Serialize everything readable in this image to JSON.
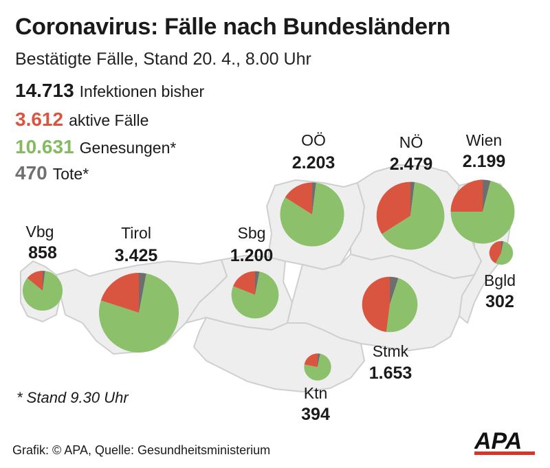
{
  "title": "Coronavirus: Fälle nach Bundesländern",
  "subtitle": "Bestätigte Fälle, Stand 20. 4., 8.00 Uhr",
  "totals": [
    {
      "value": "14.713",
      "label": "Infektionen bisher",
      "color": "#1a1a1a"
    },
    {
      "value": "3.612",
      "label": "aktive Fälle",
      "color": "#d9553f"
    },
    {
      "value": "10.631",
      "label": "Genesungen*",
      "color": "#83bb5e"
    },
    {
      "value": "470",
      "label": "Tote*",
      "color": "#707070"
    }
  ],
  "colors": {
    "active": "#d9553f",
    "recovered": "#8cc06a",
    "deaths": "#6e6e6e",
    "map_fill": "#eeeeee",
    "map_border": "#cfcfcf"
  },
  "regions": [
    {
      "name": "Vbg",
      "total": "858",
      "total_num": 858,
      "active_share": 0.14,
      "death_share": 0.02
    },
    {
      "name": "Tirol",
      "total": "3.425",
      "total_num": 3425,
      "active_share": 0.2,
      "death_share": 0.03
    },
    {
      "name": "Sbg",
      "total": "1.200",
      "total_num": 1200,
      "active_share": 0.19,
      "death_share": 0.03
    },
    {
      "name": "OÖ",
      "total": "2.203",
      "total_num": 2203,
      "active_share": 0.16,
      "death_share": 0.02
    },
    {
      "name": "NÖ",
      "total": "2.479",
      "total_num": 2479,
      "active_share": 0.34,
      "death_share": 0.02
    },
    {
      "name": "Wien",
      "total": "2.199",
      "total_num": 2199,
      "active_share": 0.25,
      "death_share": 0.04
    },
    {
      "name": "Bgld",
      "total": "302",
      "total_num": 302,
      "active_share": 0.42,
      "death_share": 0.03
    },
    {
      "name": "Stmk",
      "total": "1.653",
      "total_num": 1653,
      "active_share": 0.48,
      "death_share": 0.05
    },
    {
      "name": "Ktn",
      "total": "394",
      "total_num": 394,
      "active_share": 0.22,
      "death_share": 0.03
    }
  ],
  "footnote": "* Stand 9.30 Uhr",
  "source": "Grafik: © APA, Quelle: Gesundheitsministerium",
  "logo_text": "APA"
}
